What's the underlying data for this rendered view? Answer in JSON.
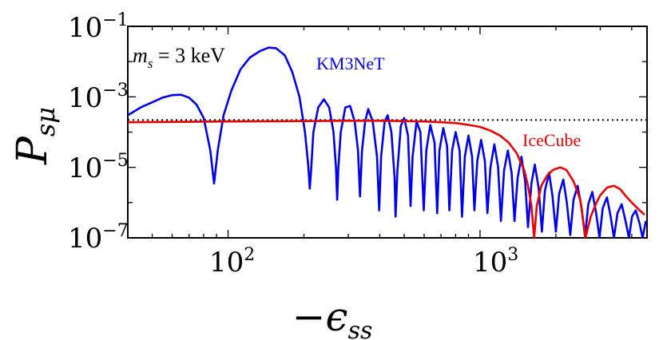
{
  "chart_data": {
    "type": "line",
    "xscale": "log",
    "yscale": "log",
    "xlim": [
      40,
      4600
    ],
    "ylim": [
      1e-07,
      0.1
    ],
    "xlabel_sign": "−",
    "xlabel_symbol": "ϵ",
    "xlabel_sub": "ss",
    "ylabel_symbol": "P",
    "ylabel_sub": "sμ",
    "annotation": {
      "lhs": "m",
      "lhs_sub": "s",
      "rhs": " = 3 keV"
    },
    "x_ticks": [
      {
        "base": "10",
        "exp": "2",
        "value": 100
      },
      {
        "base": "10",
        "exp": "3",
        "value": 1000
      }
    ],
    "y_ticks": [
      {
        "base": "10",
        "exp": "−1",
        "value": 0.1
      },
      {
        "base": "10",
        "exp": "−3",
        "value": 0.001
      },
      {
        "base": "10",
        "exp": "−5",
        "value": 1e-05
      },
      {
        "base": "10",
        "exp": "−7",
        "value": 1e-07
      }
    ],
    "reference_level": 0.00022,
    "series": [
      {
        "name": "KM3NeT",
        "color": "#0000ee",
        "points": [
          [
            40,
            0.0003
          ],
          [
            45,
            0.0005
          ],
          [
            50,
            0.0007
          ],
          [
            55,
            0.00095
          ],
          [
            60,
            0.00112
          ],
          [
            65,
            0.00115
          ],
          [
            70,
            0.00095
          ],
          [
            75,
            0.0006
          ],
          [
            80,
            0.00025
          ],
          [
            85,
            3e-05
          ],
          [
            88,
            3.5e-06
          ],
          [
            91,
            3e-05
          ],
          [
            96,
            0.0003
          ],
          [
            103,
            0.0015
          ],
          [
            112,
            0.006
          ],
          [
            122,
            0.013
          ],
          [
            134,
            0.02
          ],
          [
            145,
            0.025
          ],
          [
            155,
            0.024
          ],
          [
            168,
            0.015
          ],
          [
            180,
            0.005
          ],
          [
            192,
            0.001
          ],
          [
            202,
            0.0001
          ],
          [
            208,
            1.2e-05
          ],
          [
            211,
            2.5e-06
          ],
          [
            214,
            1e-05
          ],
          [
            218,
            0.0001
          ],
          [
            228,
            0.0005
          ],
          [
            240,
            0.00085
          ],
          [
            252,
            0.0005
          ],
          [
            262,
            0.0001
          ],
          [
            268,
            1e-05
          ],
          [
            271,
            1.2e-06
          ],
          [
            274,
            1e-05
          ],
          [
            280,
            0.0001
          ],
          [
            292,
            0.0005
          ],
          [
            305,
            0.00055
          ],
          [
            318,
            0.0002
          ],
          [
            328,
            3e-05
          ],
          [
            334,
            1.5e-06
          ],
          [
            340,
            3e-05
          ],
          [
            350,
            0.0002
          ],
          [
            360,
            0.00045
          ],
          [
            375,
            0.0002
          ],
          [
            390,
            2e-05
          ],
          [
            398,
            6e-07
          ],
          [
            405,
            2e-05
          ],
          [
            418,
            0.0002
          ],
          [
            430,
            0.0003
          ],
          [
            445,
            0.0001
          ],
          [
            458,
            5e-06
          ],
          [
            462,
            4e-07
          ],
          [
            470,
            8e-06
          ],
          [
            485,
            0.00015
          ],
          [
            500,
            0.00025
          ],
          [
            518,
            8e-05
          ],
          [
            530,
            8e-07
          ],
          [
            540,
            2e-05
          ],
          [
            560,
            0.0002
          ],
          [
            580,
            0.0001
          ],
          [
            598,
            6e-07
          ],
          [
            612,
            3e-05
          ],
          [
            635,
            0.00016
          ],
          [
            660,
            5e-05
          ],
          [
            676,
            5e-07
          ],
          [
            690,
            3e-05
          ],
          [
            715,
            0.00013
          ],
          [
            740,
            4e-05
          ],
          [
            756,
            6e-07
          ],
          [
            775,
            3e-05
          ],
          [
            800,
            0.0001
          ],
          [
            830,
            3e-05
          ],
          [
            848,
            4e-07
          ],
          [
            870,
            2e-05
          ],
          [
            900,
            8e-05
          ],
          [
            930,
            2e-05
          ],
          [
            950,
            6e-07
          ],
          [
            975,
            1.5e-05
          ],
          [
            1010,
            6e-05
          ],
          [
            1045,
            1.5e-05
          ],
          [
            1070,
            5e-07
          ],
          [
            1100,
            1e-05
          ],
          [
            1140,
            4.5e-05
          ],
          [
            1180,
            1e-05
          ],
          [
            1210,
            3e-07
          ],
          [
            1245,
            8e-06
          ],
          [
            1290,
            3e-05
          ],
          [
            1335,
            7e-06
          ],
          [
            1370,
            3e-07
          ],
          [
            1410,
            5e-06
          ],
          [
            1460,
            2e-05
          ],
          [
            1510,
            4e-06
          ],
          [
            1550,
            2e-07
          ],
          [
            1600,
            3.5e-06
          ],
          [
            1650,
            1.2e-05
          ],
          [
            1710,
            2.5e-06
          ],
          [
            1760,
            1.5e-07
          ],
          [
            1810,
            2.2e-06
          ],
          [
            1880,
            7e-06
          ],
          [
            1940,
            1.5e-06
          ],
          [
            2000,
            1.5e-07
          ],
          [
            2060,
            1.8e-06
          ],
          [
            2140,
            4.5e-06
          ],
          [
            2210,
            1e-06
          ],
          [
            2280,
            1.2e-07
          ],
          [
            2350,
            1.2e-06
          ],
          [
            2440,
            3e-06
          ],
          [
            2530,
            7e-07
          ],
          [
            2610,
            1.1e-07
          ],
          [
            2690,
            9e-07
          ],
          [
            2790,
            2e-06
          ],
          [
            2890,
            5e-07
          ],
          [
            2980,
            1e-07
          ],
          [
            3070,
            7e-07
          ],
          [
            3190,
            1.4e-06
          ],
          [
            3300,
            4e-07
          ],
          [
            3400,
            1e-07
          ],
          [
            3510,
            5e-07
          ],
          [
            3650,
            9e-07
          ],
          [
            3780,
            3e-07
          ],
          [
            3900,
            1e-07
          ],
          [
            4010,
            4e-07
          ],
          [
            4150,
            6e-07
          ],
          [
            4300,
            2.5e-07
          ],
          [
            4420,
            1e-07
          ],
          [
            4550,
            3e-07
          ]
        ]
      },
      {
        "name": "IceCube",
        "color": "#ee0000",
        "points": [
          [
            40,
            0.00019
          ],
          [
            100,
            0.0002
          ],
          [
            200,
            0.000205
          ],
          [
            300,
            0.00021
          ],
          [
            400,
            0.00021
          ],
          [
            500,
            0.000205
          ],
          [
            600,
            0.0002
          ],
          [
            700,
            0.00019
          ],
          [
            800,
            0.00018
          ],
          [
            900,
            0.00016
          ],
          [
            1000,
            0.00014
          ],
          [
            1100,
            0.00011
          ],
          [
            1200,
            8e-05
          ],
          [
            1300,
            5e-05
          ],
          [
            1400,
            2.5e-05
          ],
          [
            1500,
            8e-06
          ],
          [
            1550,
            3e-06
          ],
          [
            1600,
            8e-07
          ],
          [
            1640,
            1e-07
          ],
          [
            1680,
            8e-07
          ],
          [
            1750,
            3e-06
          ],
          [
            1850,
            6e-06
          ],
          [
            1950,
            8.5e-06
          ],
          [
            2080,
            1e-05
          ],
          [
            2200,
            8.5e-06
          ],
          [
            2350,
            4e-06
          ],
          [
            2500,
            1.2e-06
          ],
          [
            2620,
            1e-07
          ],
          [
            2750,
            4e-07
          ],
          [
            2900,
            1e-06
          ],
          [
            3000,
            1.6e-06
          ],
          [
            3200,
            2.7e-06
          ],
          [
            3400,
            3e-06
          ],
          [
            3600,
            2.4e-06
          ],
          [
            3800,
            1.5e-06
          ],
          [
            4000,
            1e-06
          ],
          [
            4300,
            6e-07
          ],
          [
            4500,
            4.5e-07
          ]
        ]
      }
    ]
  }
}
